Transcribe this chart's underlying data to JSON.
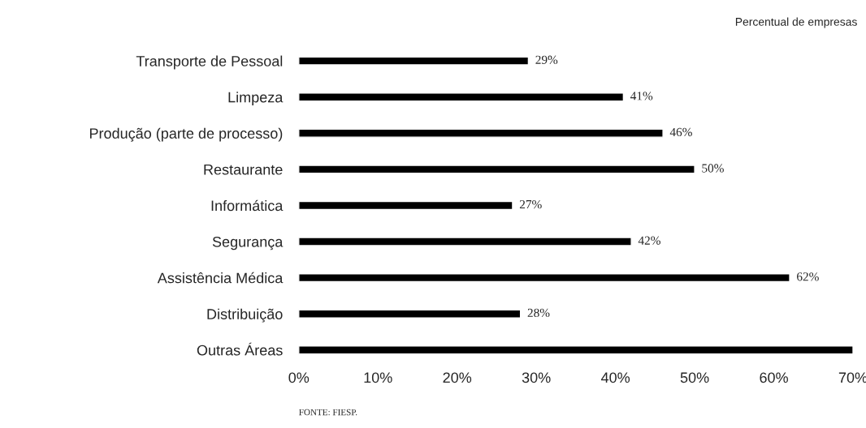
{
  "chart_data": {
    "type": "bar",
    "orientation": "horizontal",
    "categories": [
      "Transporte de Pessoal",
      "Limpeza",
      "Produção (parte de processo)",
      "Restaurante",
      "Informática",
      "Segurança",
      "Assistência Médica",
      "Distribuição",
      "Outras Áreas"
    ],
    "values": [
      29,
      41,
      46,
      50,
      27,
      42,
      62,
      28,
      70
    ],
    "value_labels": [
      "29%",
      "41%",
      "46%",
      "50%",
      "27%",
      "42%",
      "62%",
      "28%",
      null
    ],
    "color": "#000000",
    "xlim": [
      0,
      70
    ],
    "xticks": [
      {
        "value": 0,
        "label": "0%"
      },
      {
        "value": 10,
        "label": "10%"
      },
      {
        "value": 20,
        "label": "20%"
      },
      {
        "value": 30,
        "label": "30%"
      },
      {
        "value": 40,
        "label": "40%"
      },
      {
        "value": 50,
        "label": "50%"
      },
      {
        "value": 60,
        "label": "60%"
      },
      {
        "value": 70,
        "label": "70%"
      }
    ],
    "grid": false,
    "annotations": [
      "Percentual de empresas",
      "FONTE: FIESP."
    ]
  }
}
